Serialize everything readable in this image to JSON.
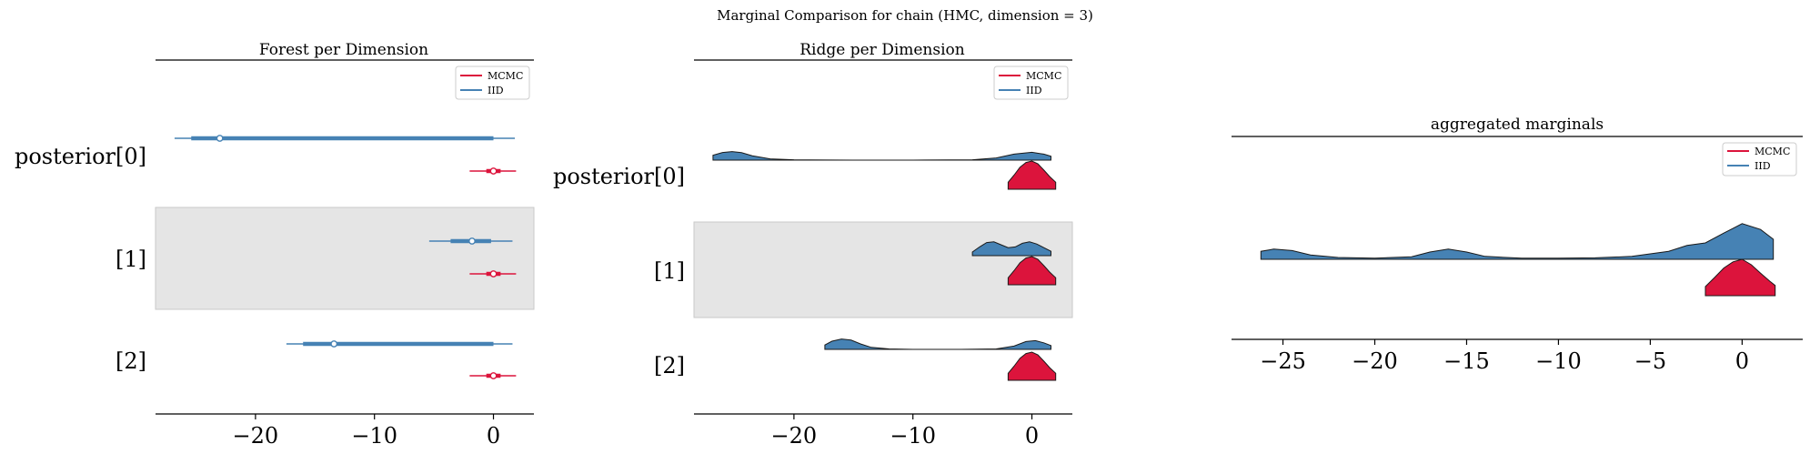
{
  "suptitle": "Marginal Comparison for chain (HMC, dimension = 3)",
  "colors": {
    "mcmc": "#dc143c",
    "iid": "#4682b4",
    "band": "#e5e5e5",
    "axis": "#000000",
    "dark": "#1a1a1a"
  },
  "legend": {
    "mcmc": "MCMC",
    "iid": "IID"
  },
  "chart_data": [
    {
      "type": "forest",
      "title": "Forest per Dimension",
      "xlabel": "",
      "ylabel": "",
      "xlim": [
        -28.4,
        3.4
      ],
      "xticks": [
        -20,
        -10,
        0
      ],
      "xtick_labels": [
        "−20",
        "−10",
        "0"
      ],
      "categories": [
        "posterior[0]",
        "[1]",
        "[2]"
      ],
      "shaded_rows": [
        1
      ],
      "legend_position": "top-right",
      "series": [
        {
          "name": "IID",
          "rows": [
            {
              "hdi94": [
                -26.8,
                1.8
              ],
              "iqr": [
                -25.4,
                0.0
              ],
              "point": -23.0
            },
            {
              "hdi94": [
                -5.4,
                1.6
              ],
              "iqr": [
                -3.6,
                -0.2
              ],
              "point": -1.8
            },
            {
              "hdi94": [
                -17.4,
                1.6
              ],
              "iqr": [
                -16.0,
                0.0
              ],
              "point": -13.4
            }
          ]
        },
        {
          "name": "MCMC",
          "rows": [
            {
              "hdi94": [
                -2.0,
                1.9
              ],
              "iqr": [
                -0.6,
                0.6
              ],
              "point": 0.0
            },
            {
              "hdi94": [
                -2.0,
                1.9
              ],
              "iqr": [
                -0.6,
                0.6
              ],
              "point": 0.0
            },
            {
              "hdi94": [
                -2.0,
                1.9
              ],
              "iqr": [
                -0.6,
                0.6
              ],
              "point": 0.0
            }
          ]
        }
      ]
    },
    {
      "type": "ridgeline",
      "title": "Ridge per Dimension",
      "xlabel": "",
      "ylabel": "",
      "xlim": [
        -28.4,
        3.4
      ],
      "xticks": [
        -20,
        -10,
        0
      ],
      "xtick_labels": [
        "−20",
        "−10",
        "0"
      ],
      "categories": [
        "posterior[0]",
        "[1]",
        "[2]"
      ],
      "shaded_rows": [
        1
      ],
      "legend_position": "top-right",
      "series": [
        {
          "name": "IID",
          "rows": [
            {
              "x": [
                -26.8,
                -26.0,
                -25.2,
                -24.4,
                -23.5,
                -22.0,
                -20.0,
                -15.0,
                -10.0,
                -5.0,
                -3.0,
                -1.5,
                0.0,
                1.0,
                1.6
              ],
              "y": [
                0.45,
                0.7,
                0.78,
                0.68,
                0.4,
                0.12,
                0.03,
                0.0,
                0.0,
                0.03,
                0.2,
                0.55,
                0.72,
                0.55,
                0.35
              ]
            },
            {
              "x": [
                -5.0,
                -4.4,
                -3.8,
                -3.2,
                -2.6,
                -2.0,
                -1.4,
                -0.8,
                -0.2,
                0.4,
                1.0,
                1.6
              ],
              "y": [
                0.25,
                0.6,
                0.9,
                0.95,
                0.75,
                0.55,
                0.6,
                0.85,
                0.95,
                0.8,
                0.55,
                0.3
              ]
            },
            {
              "x": [
                -17.4,
                -16.8,
                -16.0,
                -15.2,
                -14.4,
                -13.5,
                -12.0,
                -10.0,
                -6.0,
                -3.0,
                -1.5,
                -0.5,
                0.3,
                1.0,
                1.6
              ],
              "y": [
                0.4,
                0.75,
                0.95,
                0.85,
                0.5,
                0.18,
                0.04,
                0.0,
                0.0,
                0.04,
                0.3,
                0.72,
                0.8,
                0.6,
                0.35
              ]
            }
          ]
        },
        {
          "name": "MCMC",
          "rows": [
            {
              "x": [
                -2.0,
                -1.5,
                -1.0,
                -0.5,
                0.0,
                0.5,
                1.0,
                1.5,
                2.0
              ],
              "y": [
                0.25,
                0.5,
                0.78,
                0.95,
                1.0,
                0.9,
                0.68,
                0.45,
                0.25
              ]
            },
            {
              "x": [
                -2.0,
                -1.5,
                -1.0,
                -0.5,
                0.0,
                0.5,
                1.0,
                1.5,
                2.0
              ],
              "y": [
                0.25,
                0.5,
                0.78,
                0.95,
                1.0,
                0.9,
                0.68,
                0.45,
                0.25
              ]
            },
            {
              "x": [
                -2.0,
                -1.5,
                -1.0,
                -0.5,
                0.0,
                0.5,
                1.0,
                1.5,
                2.0
              ],
              "y": [
                0.25,
                0.5,
                0.78,
                0.95,
                1.0,
                0.9,
                0.68,
                0.45,
                0.25
              ]
            }
          ]
        }
      ]
    },
    {
      "type": "ridgeline",
      "title": "aggregated marginals",
      "xlabel": "",
      "ylabel": "",
      "xlim": [
        -27.8,
        3.3
      ],
      "xticks": [
        -25,
        -20,
        -15,
        -10,
        -5,
        0
      ],
      "xtick_labels": [
        "−25",
        "−20",
        "−15",
        "−10",
        "−5",
        "0"
      ],
      "legend_position": "top-right",
      "series": [
        {
          "name": "IID",
          "x": [
            -26.2,
            -25.5,
            -24.5,
            -23.5,
            -22.0,
            -20.0,
            -18.0,
            -17.0,
            -16.0,
            -15.0,
            -14.0,
            -12.0,
            -10.0,
            -8.0,
            -6.0,
            -4.0,
            -3.0,
            -2.0,
            -1.0,
            0.0,
            1.0,
            1.7
          ],
          "y": [
            0.22,
            0.28,
            0.24,
            0.12,
            0.05,
            0.03,
            0.07,
            0.2,
            0.28,
            0.2,
            0.08,
            0.03,
            0.03,
            0.04,
            0.08,
            0.22,
            0.38,
            0.45,
            0.72,
            0.98,
            0.82,
            0.55
          ]
        },
        {
          "name": "MCMC",
          "x": [
            -2.0,
            -1.5,
            -1.0,
            -0.5,
            0.0,
            0.5,
            1.0,
            1.5,
            1.8
          ],
          "y": [
            0.25,
            0.5,
            0.76,
            0.93,
            1.0,
            0.85,
            0.62,
            0.4,
            0.28
          ]
        }
      ]
    }
  ]
}
